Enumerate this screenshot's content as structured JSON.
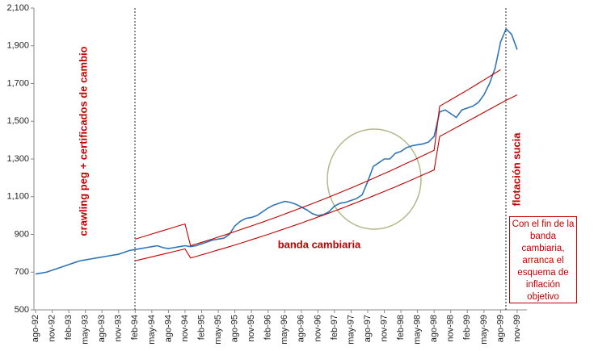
{
  "chart_data": {
    "type": "line",
    "categories": [
      "ago-92",
      null,
      null,
      "nov-92",
      null,
      null,
      "feb-93",
      null,
      null,
      "may-93",
      null,
      null,
      "ago-93",
      null,
      null,
      "nov-93",
      null,
      null,
      "feb-94",
      null,
      null,
      "may-94",
      null,
      null,
      "ago-94",
      null,
      null,
      "nov-94",
      null,
      null,
      "feb-95",
      null,
      null,
      "may-95",
      null,
      null,
      "ago-95",
      null,
      null,
      "nov-95",
      null,
      null,
      "feb-96",
      null,
      null,
      "may-96",
      null,
      null,
      "ago-96",
      null,
      null,
      "nov-96",
      null,
      null,
      "feb-97",
      null,
      null,
      "may-97",
      null,
      null,
      "ago-97",
      null,
      null,
      "nov-97",
      null,
      null,
      "feb-98",
      null,
      null,
      "may-98",
      null,
      null,
      "ago-98",
      null,
      null,
      "nov-98",
      null,
      null,
      "feb-99",
      null,
      null,
      "may-99",
      null,
      null,
      "ago-99",
      null,
      null,
      "nov-99"
    ],
    "series": [
      {
        "color": "#2f75b5",
        "values": [
          690,
          695,
          700,
          710,
          720,
          730,
          740,
          750,
          760,
          765,
          770,
          775,
          780,
          785,
          790,
          795,
          805,
          815,
          820,
          825,
          830,
          835,
          840,
          830,
          825,
          830,
          835,
          840,
          835,
          840,
          850,
          860,
          870,
          875,
          880,
          900,
          945,
          970,
          985,
          990,
          1000,
          1020,
          1040,
          1055,
          1065,
          1075,
          1070,
          1060,
          1045,
          1030,
          1010,
          1000,
          1005,
          1020,
          1050,
          1065,
          1070,
          1080,
          1090,
          1110,
          1180,
          1260,
          1280,
          1300,
          1300,
          1330,
          1340,
          1360,
          1370,
          1375,
          1380,
          1390,
          1420,
          1550,
          1560,
          1540,
          1520,
          1560,
          1570,
          1580,
          1600,
          1640,
          1700,
          1780,
          1920,
          1990,
          1960,
          1880
        ]
      },
      {
        "color": "#c00000",
        "values": [
          null,
          null,
          null,
          null,
          null,
          null,
          null,
          null,
          null,
          null,
          null,
          null,
          null,
          null,
          null,
          null,
          null,
          null,
          875,
          884,
          893,
          902,
          911,
          920,
          929,
          938,
          947,
          955,
          840,
          849,
          858,
          867,
          876,
          886,
          895,
          905,
          915,
          925,
          935,
          945,
          955,
          965,
          976,
          986,
          997,
          1008,
          1019,
          1030,
          1041,
          1052,
          1063,
          1075,
          1086,
          1098,
          1110,
          1122,
          1134,
          1146,
          1159,
          1171,
          1184,
          1197,
          1210,
          1223,
          1236,
          1249,
          1263,
          1277,
          1290,
          1304,
          1318,
          1332,
          1346,
          1580,
          1597,
          1614,
          1631,
          1648,
          1665,
          1683,
          1701,
          1719,
          1737,
          1755,
          1773,
          null,
          null,
          null
        ]
      },
      {
        "color": "#c00000",
        "values": [
          null,
          null,
          null,
          null,
          null,
          null,
          null,
          null,
          null,
          null,
          null,
          null,
          null,
          null,
          null,
          null,
          null,
          null,
          760,
          767,
          774,
          781,
          788,
          795,
          802,
          809,
          816,
          823,
          775,
          783,
          792,
          800,
          809,
          818,
          826,
          835,
          844,
          853,
          862,
          872,
          881,
          891,
          900,
          910,
          920,
          930,
          940,
          950,
          960,
          971,
          981,
          992,
          1002,
          1013,
          1024,
          1035,
          1046,
          1058,
          1069,
          1081,
          1092,
          1104,
          1116,
          1128,
          1140,
          1152,
          1165,
          1177,
          1190,
          1203,
          1216,
          1229,
          1242,
          1420,
          1435,
          1451,
          1467,
          1483,
          1499,
          1515,
          1531,
          1547,
          1563,
          1579,
          1595,
          1611,
          1625,
          1640
        ]
      }
    ],
    "ylim": [
      500,
      2100
    ],
    "yticks": [
      500,
      700,
      900,
      {
        "value": 1100,
        "label": "1,100"
      },
      {
        "value": 1300,
        "label": "1,300"
      },
      {
        "value": 1500,
        "label": "1,500"
      },
      {
        "value": 1700,
        "label": "1,700"
      },
      {
        "value": 1900,
        "label": "1,900"
      },
      {
        "value": 2100,
        "label": "2,100"
      }
    ],
    "grid": false,
    "annotations": [
      "crawling peg + certificados de cambio",
      "banda cambiaria",
      "flotación sucia",
      "Con el fin de la banda cambiaria, arranca el esquema de inflación objetivo"
    ]
  }
}
